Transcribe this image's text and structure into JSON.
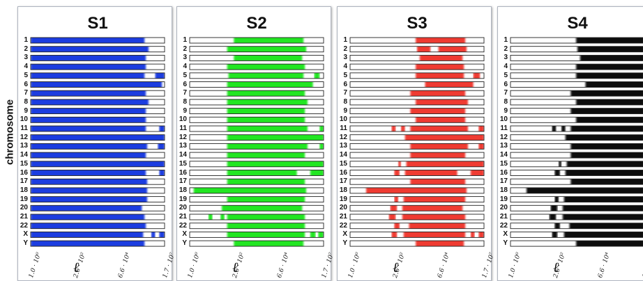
{
  "chart_data": {
    "type": "heatmap",
    "ylabel": "chromosome",
    "xlabel": "ℓ",
    "chromosomes": [
      "1",
      "2",
      "3",
      "4",
      "5",
      "6",
      "7",
      "8",
      "9",
      "10",
      "11",
      "12",
      "13",
      "14",
      "15",
      "16",
      "17",
      "18",
      "19",
      "20",
      "21",
      "22",
      "X",
      "Y"
    ],
    "x_ticks": [
      "1.0 · 10⁰",
      "2.6 · 10²",
      "6.6 · 10⁴",
      "1.7 · 10⁷"
    ],
    "x_tick_positions_log10": [
      0,
      2.41,
      4.82,
      7.23
    ],
    "xlim_log10": [
      0,
      7.23
    ],
    "panels": [
      {
        "title": "S1",
        "color": "#1f3de0",
        "segments": [
          [
            [
              0.0,
              0.85
            ]
          ],
          [
            [
              0.0,
              0.88
            ]
          ],
          [
            [
              0.0,
              0.86
            ]
          ],
          [
            [
              0.0,
              0.86
            ]
          ],
          [
            [
              0.0,
              0.85
            ],
            [
              0.93,
              1.0
            ]
          ],
          [
            [
              0.0,
              0.98
            ]
          ],
          [
            [
              0.0,
              0.86
            ]
          ],
          [
            [
              0.0,
              0.88
            ]
          ],
          [
            [
              0.0,
              0.86
            ]
          ],
          [
            [
              0.0,
              0.86
            ]
          ],
          [
            [
              0.0,
              0.86
            ],
            [
              0.96,
              1.0
            ]
          ],
          [
            [
              0.0,
              1.0
            ]
          ],
          [
            [
              0.0,
              0.87
            ],
            [
              0.95,
              1.0
            ]
          ],
          [
            [
              0.0,
              0.86
            ]
          ],
          [
            [
              0.0,
              1.0
            ]
          ],
          [
            [
              0.0,
              0.86
            ],
            [
              0.96,
              1.0
            ]
          ],
          [
            [
              0.0,
              0.87
            ]
          ],
          [
            [
              0.0,
              0.87
            ]
          ],
          [
            [
              0.0,
              0.87
            ]
          ],
          [
            [
              0.0,
              0.83
            ]
          ],
          [
            [
              0.0,
              0.85
            ]
          ],
          [
            [
              0.0,
              0.86
            ]
          ],
          [
            [
              0.0,
              0.84
            ],
            [
              0.9,
              0.93
            ],
            [
              0.96,
              1.0
            ]
          ],
          [
            [
              0.0,
              0.85
            ]
          ]
        ]
      },
      {
        "title": "S2",
        "color": "#22e622",
        "segments": [
          [
            [
              0.33,
              0.85
            ]
          ],
          [
            [
              0.28,
              0.87
            ]
          ],
          [
            [
              0.33,
              0.84
            ]
          ],
          [
            [
              0.28,
              0.86
            ]
          ],
          [
            [
              0.29,
              0.85
            ],
            [
              0.93,
              0.97
            ]
          ],
          [
            [
              0.28,
              0.92
            ]
          ],
          [
            [
              0.28,
              0.86
            ]
          ],
          [
            [
              0.28,
              0.88
            ]
          ],
          [
            [
              0.28,
              0.86
            ]
          ],
          [
            [
              0.28,
              0.86
            ]
          ],
          [
            [
              0.28,
              0.88
            ],
            [
              0.97,
              1.0
            ]
          ],
          [
            [
              0.28,
              1.0
            ]
          ],
          [
            [
              0.28,
              0.88
            ],
            [
              0.97,
              1.0
            ]
          ],
          [
            [
              0.28,
              0.86
            ]
          ],
          [
            [
              0.28,
              1.0
            ]
          ],
          [
            [
              0.28,
              0.8
            ],
            [
              0.9,
              1.0
            ]
          ],
          [
            [
              0.28,
              0.86
            ]
          ],
          [
            [
              0.03,
              0.87
            ]
          ],
          [
            [
              0.28,
              0.86
            ]
          ],
          [
            [
              0.24,
              0.84
            ]
          ],
          [
            [
              0.14,
              0.17
            ],
            [
              0.23,
              0.26
            ],
            [
              0.28,
              0.86
            ]
          ],
          [
            [
              0.28,
              0.86
            ]
          ],
          [
            [
              0.28,
              0.86
            ],
            [
              0.9,
              0.94
            ],
            [
              0.96,
              1.0
            ]
          ],
          [
            [
              0.33,
              0.85
            ]
          ]
        ]
      },
      {
        "title": "S3",
        "color": "#ef3a32",
        "segments": [
          [
            [
              0.49,
              0.86
            ]
          ],
          [
            [
              0.5,
              0.6
            ],
            [
              0.66,
              0.87
            ]
          ],
          [
            [
              0.52,
              0.84
            ]
          ],
          [
            [
              0.49,
              0.85
            ]
          ],
          [
            [
              0.49,
              0.85
            ],
            [
              0.92,
              0.97
            ]
          ],
          [
            [
              0.56,
              0.92
            ]
          ],
          [
            [
              0.45,
              0.86
            ]
          ],
          [
            [
              0.49,
              0.88
            ]
          ],
          [
            [
              0.45,
              0.86
            ]
          ],
          [
            [
              0.49,
              0.86
            ]
          ],
          [
            [
              0.31,
              0.34
            ],
            [
              0.38,
              0.41
            ],
            [
              0.45,
              0.88
            ],
            [
              0.96,
              1.0
            ]
          ],
          [
            [
              0.41,
              1.0
            ]
          ],
          [
            [
              0.45,
              0.88
            ],
            [
              0.96,
              1.0
            ]
          ],
          [
            [
              0.45,
              0.86
            ]
          ],
          [
            [
              0.36,
              0.38
            ],
            [
              0.42,
              1.0
            ]
          ],
          [
            [
              0.33,
              0.37
            ],
            [
              0.41,
              0.8
            ],
            [
              0.9,
              1.0
            ]
          ],
          [
            [
              0.45,
              0.86
            ]
          ],
          [
            [
              0.12,
              0.87
            ]
          ],
          [
            [
              0.33,
              0.36
            ],
            [
              0.4,
              0.86
            ]
          ],
          [
            [
              0.3,
              0.35
            ],
            [
              0.39,
              0.84
            ]
          ],
          [
            [
              0.29,
              0.34
            ],
            [
              0.39,
              0.86
            ]
          ],
          [
            [
              0.33,
              0.37
            ],
            [
              0.44,
              0.86
            ]
          ],
          [
            [
              0.31,
              0.35
            ],
            [
              0.4,
              0.86
            ],
            [
              0.9,
              0.93
            ],
            [
              0.96,
              1.0
            ]
          ],
          [
            [
              0.49,
              0.85
            ]
          ]
        ]
      },
      {
        "title": "S4",
        "color": "#111111",
        "segments": [
          [
            [
              0.49,
              1.0
            ]
          ],
          [
            [
              0.5,
              1.0
            ]
          ],
          [
            [
              0.52,
              1.0
            ]
          ],
          [
            [
              0.49,
              1.0
            ]
          ],
          [
            [
              0.49,
              1.0
            ]
          ],
          [
            [
              0.56,
              1.0
            ]
          ],
          [
            [
              0.45,
              1.0
            ]
          ],
          [
            [
              0.49,
              1.0
            ]
          ],
          [
            [
              0.45,
              1.0
            ]
          ],
          [
            [
              0.49,
              1.0
            ]
          ],
          [
            [
              0.31,
              0.34
            ],
            [
              0.38,
              0.41
            ],
            [
              0.45,
              1.0
            ]
          ],
          [
            [
              0.41,
              1.0
            ]
          ],
          [
            [
              0.45,
              1.0
            ]
          ],
          [
            [
              0.45,
              1.0
            ]
          ],
          [
            [
              0.36,
              0.38
            ],
            [
              0.42,
              1.0
            ]
          ],
          [
            [
              0.33,
              0.37
            ],
            [
              0.41,
              1.0
            ]
          ],
          [
            [
              0.45,
              1.0
            ]
          ],
          [
            [
              0.12,
              1.0
            ]
          ],
          [
            [
              0.33,
              0.36
            ],
            [
              0.4,
              1.0
            ]
          ],
          [
            [
              0.3,
              0.35
            ],
            [
              0.39,
              1.0
            ]
          ],
          [
            [
              0.29,
              0.34
            ],
            [
              0.39,
              1.0
            ]
          ],
          [
            [
              0.33,
              0.37
            ],
            [
              0.44,
              1.0
            ]
          ],
          [
            [
              0.31,
              0.35
            ],
            [
              0.4,
              1.0
            ]
          ],
          [
            [
              0.49,
              1.0
            ]
          ]
        ]
      }
    ]
  }
}
